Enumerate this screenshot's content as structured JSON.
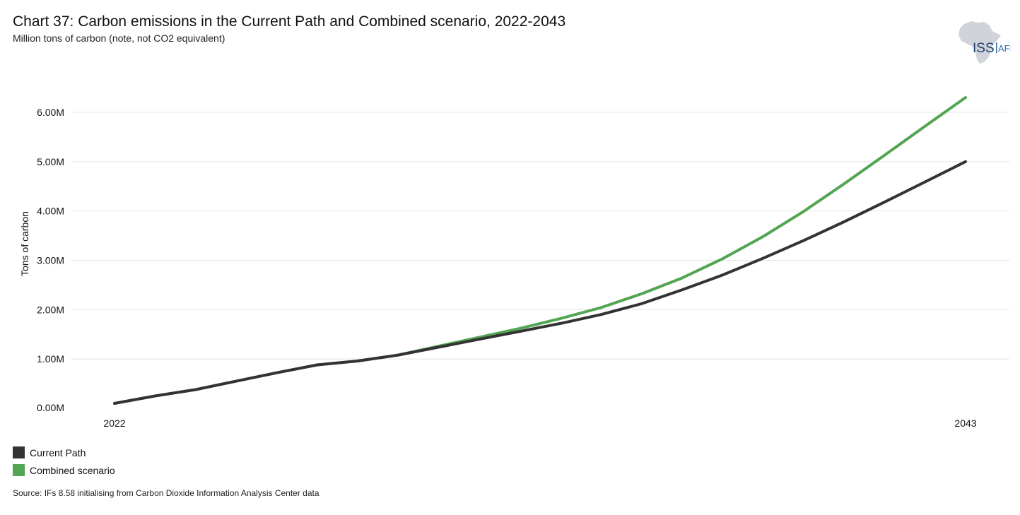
{
  "chart_data": {
    "type": "line",
    "title": "Chart 37: Carbon emissions in the Current Path and Combined scenario, 2022-2043",
    "subtitle": "Million tons of carbon (note, not CO2 equivalent)",
    "ylabel": "Tons of carbon",
    "xlabel": "",
    "x": [
      2022,
      2023,
      2024,
      2025,
      2026,
      2027,
      2028,
      2029,
      2030,
      2031,
      2032,
      2033,
      2034,
      2035,
      2036,
      2037,
      2038,
      2039,
      2040,
      2041,
      2042,
      2043
    ],
    "x_tick_labels": [
      "2022",
      "2043"
    ],
    "xlim": [
      2022,
      2043
    ],
    "ylim": [
      0,
      6500000
    ],
    "y_ticks": [
      0,
      1000000,
      2000000,
      3000000,
      4000000,
      5000000,
      6000000
    ],
    "y_tick_labels": [
      "0.00M",
      "1.00M",
      "2.00M",
      "3.00M",
      "4.00M",
      "5.00M",
      "6.00M"
    ],
    "grid": true,
    "legend_position": "bottom-left",
    "series": [
      {
        "name": "Current Path",
        "color": "#333333",
        "values": [
          100000,
          250000,
          380000,
          550000,
          720000,
          880000,
          960000,
          1080000,
          1240000,
          1400000,
          1560000,
          1720000,
          1900000,
          2120000,
          2400000,
          2700000,
          3040000,
          3400000,
          3780000,
          4180000,
          4590000,
          5000000
        ]
      },
      {
        "name": "Combined scenario",
        "color": "#52a552",
        "values": [
          100000,
          250000,
          380000,
          550000,
          720000,
          880000,
          960000,
          1080000,
          1260000,
          1440000,
          1620000,
          1820000,
          2040000,
          2320000,
          2640000,
          3030000,
          3480000,
          3990000,
          4550000,
          5130000,
          5720000,
          6300000
        ]
      }
    ]
  },
  "logo": {
    "text_left": "ISS",
    "text_right": "AFI",
    "color_left": "#1f3f6b",
    "color_right": "#3a6fa8"
  },
  "source": "Source: IFs 8.58 initialising from Carbon Dioxide Information Analysis Center data"
}
